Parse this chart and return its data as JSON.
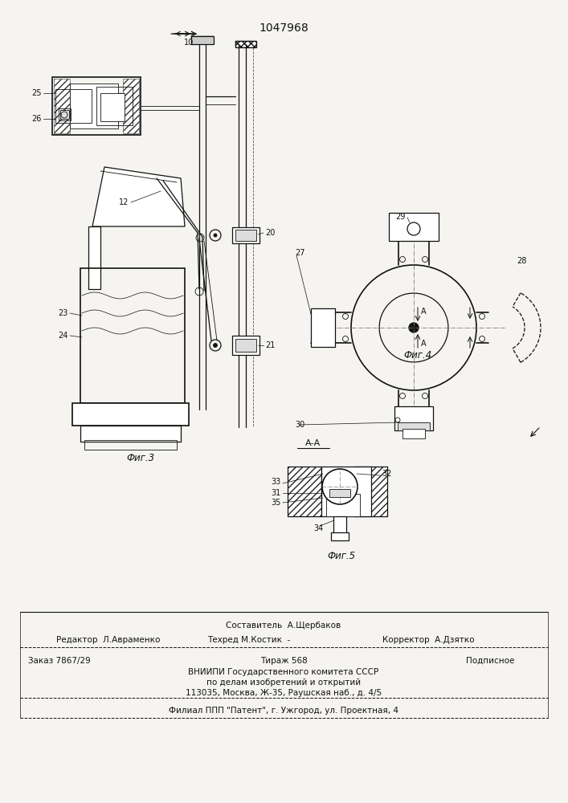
{
  "title": "1047968",
  "background_color": "#f5f4f0",
  "footer_line1": "Составитель  А.Щербаков",
  "footer_line2_left": "Редактор  Л.Авраменко",
  "footer_line2_mid": "Техред М.Костик  -",
  "footer_line2_right": "Корректор  А.Дзятко",
  "footer_line3_left": "Заказ 7867/29",
  "footer_line3_mid": "Тираж 568",
  "footer_line3_right": "Подписное",
  "footer_line4": "ВНИИПИ Государственного комитета СССР",
  "footer_line5": "по делам изобретений и открытий",
  "footer_line6": "113035, Москва, Ж-35, Раушская наб., д. 4/5",
  "footer_line7": "Филиал ППП \"Патент\", г. Ужгород, ул. Проектная, 4"
}
